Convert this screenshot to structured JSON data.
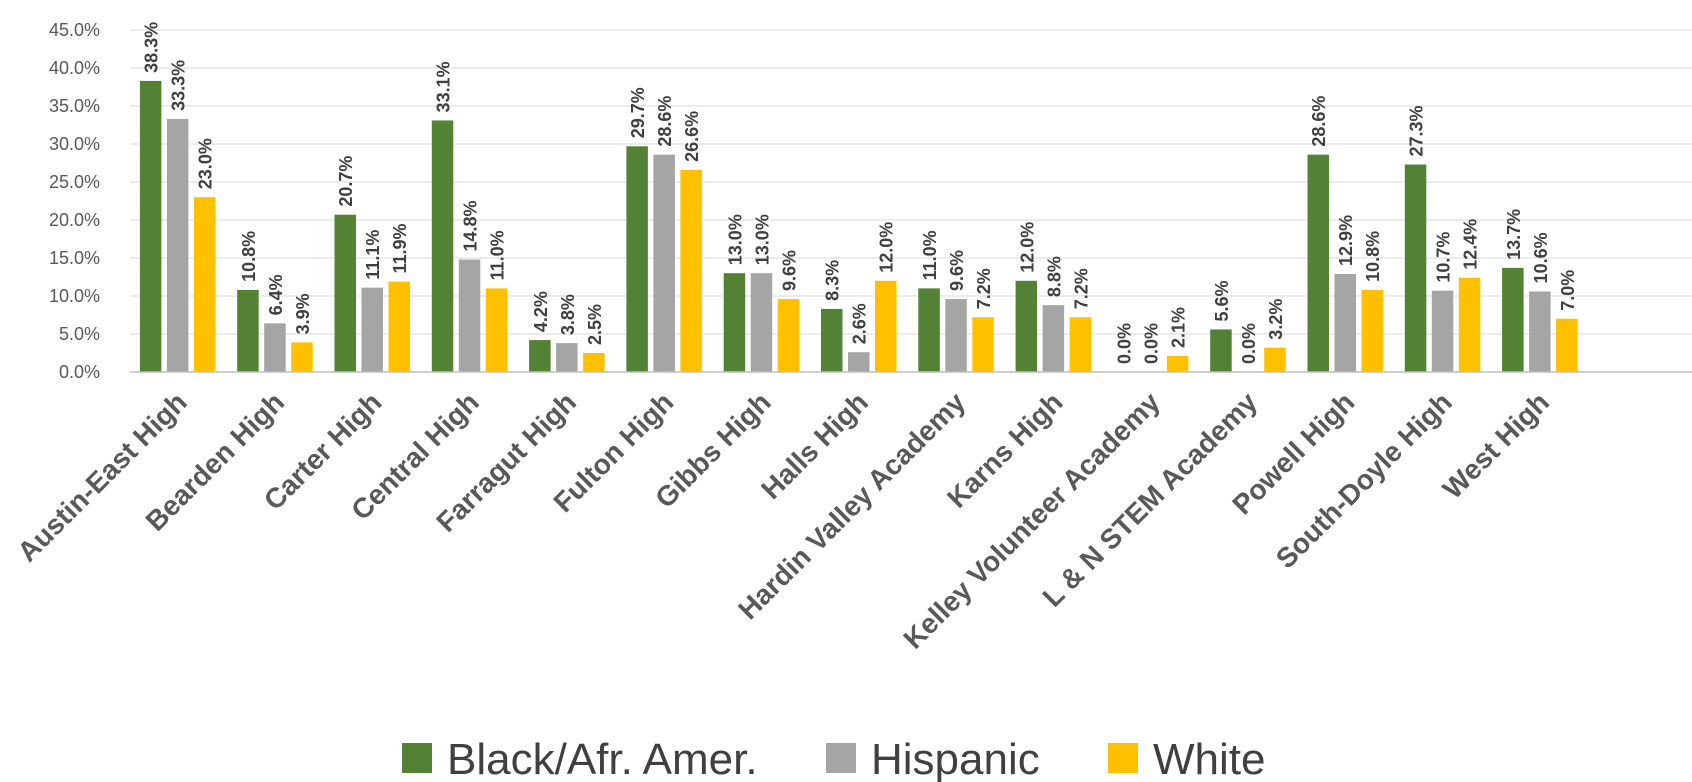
{
  "chart_data": {
    "type": "bar",
    "categories": [
      "Austin-East High",
      "Bearden High",
      "Carter High",
      "Central High",
      "Farragut High",
      "Fulton High",
      "Gibbs High",
      "Halls High",
      "Hardin Valley Academy",
      "Karns High",
      "Kelley Volunteer Academy",
      "L & N STEM Academy",
      "Powell High",
      "South-Doyle High",
      "West High"
    ],
    "series": [
      {
        "name": "Black/Afr. Amer.",
        "color": "#548235",
        "values": [
          38.3,
          10.8,
          20.7,
          33.1,
          4.2,
          29.7,
          13.0,
          8.3,
          11.0,
          12.0,
          0.0,
          5.6,
          28.6,
          27.3,
          13.7
        ],
        "labels": [
          "38.3%",
          "10.8%",
          "20.7%",
          "33.1%",
          "4.2%",
          "29.7%",
          "13.0%",
          "8.3%",
          "11.0%",
          "12.0%",
          "0.0%",
          "5.6%",
          "28.6%",
          "27.3%",
          "13.7%"
        ]
      },
      {
        "name": "Hispanic",
        "color": "#a5a5a5",
        "values": [
          33.3,
          6.4,
          11.1,
          14.8,
          3.8,
          28.6,
          13.0,
          2.6,
          9.6,
          8.8,
          0.0,
          0.0,
          12.9,
          10.7,
          10.6
        ],
        "labels": [
          "33.3%",
          "6.4%",
          "11.1%",
          "14.8%",
          "3.8%",
          "28.6%",
          "13.0%",
          "2.6%",
          "9.6%",
          "8.8%",
          "0.0%",
          "0.0%",
          "12.9%",
          "10.7%",
          "10.6%"
        ]
      },
      {
        "name": "White",
        "color": "#ffc000",
        "values": [
          23.0,
          3.9,
          11.9,
          11.0,
          2.5,
          26.6,
          9.6,
          12.0,
          7.2,
          7.2,
          2.1,
          3.2,
          10.8,
          12.4,
          7.0
        ],
        "labels": [
          "23.0%",
          "3.9%",
          "11.9%",
          "11.0%",
          "2.5%",
          "26.6%",
          "9.6%",
          "12.0%",
          "7.2%",
          "7.2%",
          "2.1%",
          "3.2%",
          "10.8%",
          "12.4%",
          "7.0%"
        ]
      }
    ],
    "yticks": [
      "0.0%",
      "5.0%",
      "10.0%",
      "15.0%",
      "20.0%",
      "25.0%",
      "30.0%",
      "35.0%",
      "40.0%",
      "45.0%"
    ],
    "ylim": [
      0,
      45
    ],
    "grid": true,
    "legend_position": "bottom",
    "title": "",
    "xlabel": "",
    "ylabel": ""
  }
}
